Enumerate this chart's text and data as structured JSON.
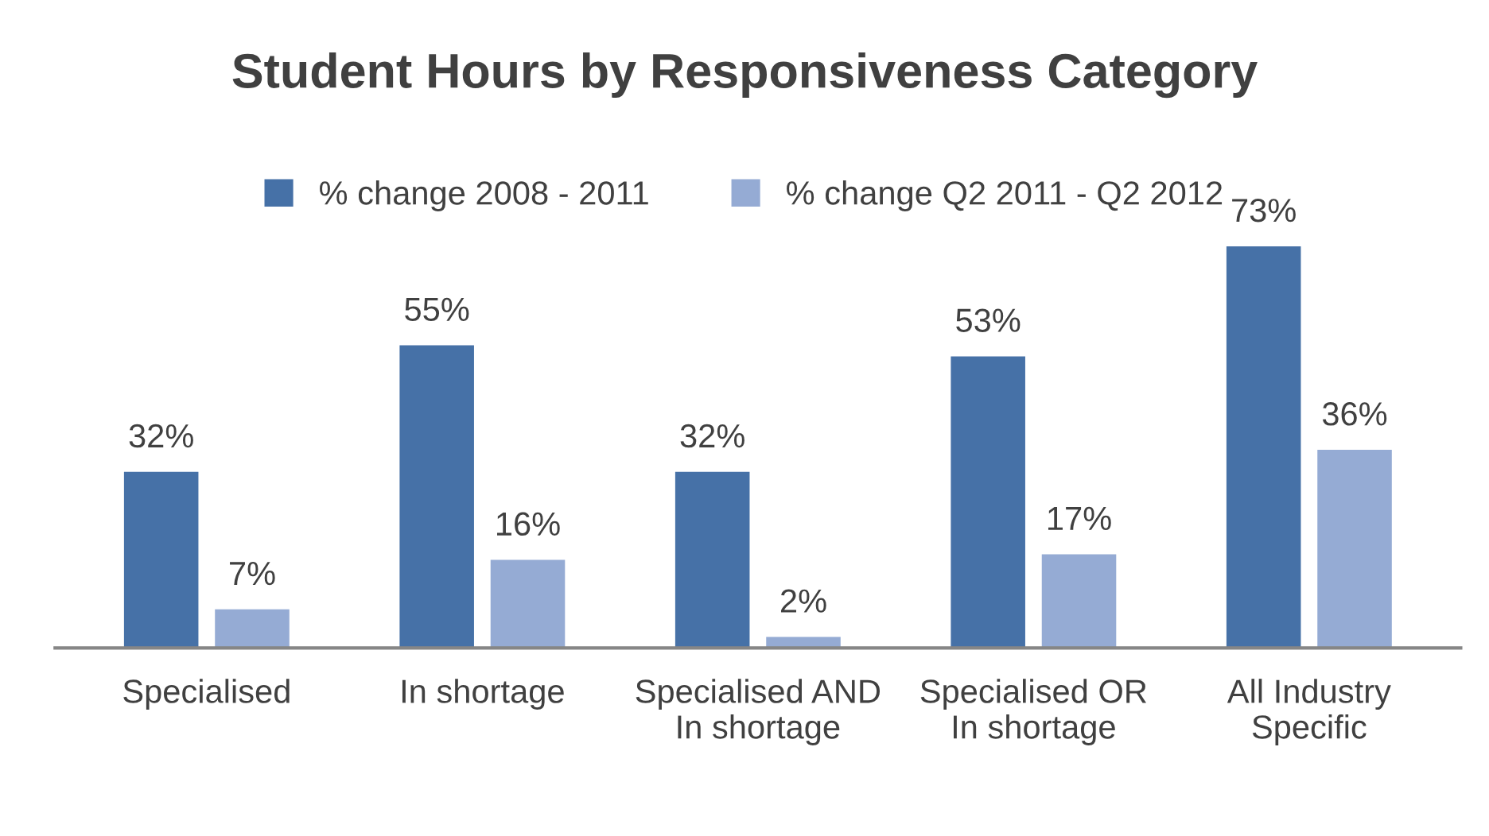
{
  "chart_data": {
    "type": "bar",
    "title": "Student Hours by Responsiveness Category",
    "categories": [
      "Specialised",
      "In shortage",
      "Specialised AND\nIn shortage",
      "Specialised OR\nIn shortage",
      "All Industry\nSpecific"
    ],
    "series": [
      {
        "name": "% change 2008 - 2011",
        "color": "#4671a7",
        "values": [
          32,
          55,
          32,
          53,
          73
        ],
        "value_labels": [
          "32%",
          "55%",
          "32%",
          "53%",
          "73%"
        ]
      },
      {
        "name": "% change Q2 2011 - Q2 2012",
        "color": "#95abd4",
        "values": [
          7,
          16,
          2,
          17,
          36
        ],
        "value_labels": [
          "7%",
          "16%",
          "2%",
          "17%",
          "36%"
        ]
      }
    ],
    "legend": "top",
    "grid": false,
    "tick_labels": "x"
  }
}
